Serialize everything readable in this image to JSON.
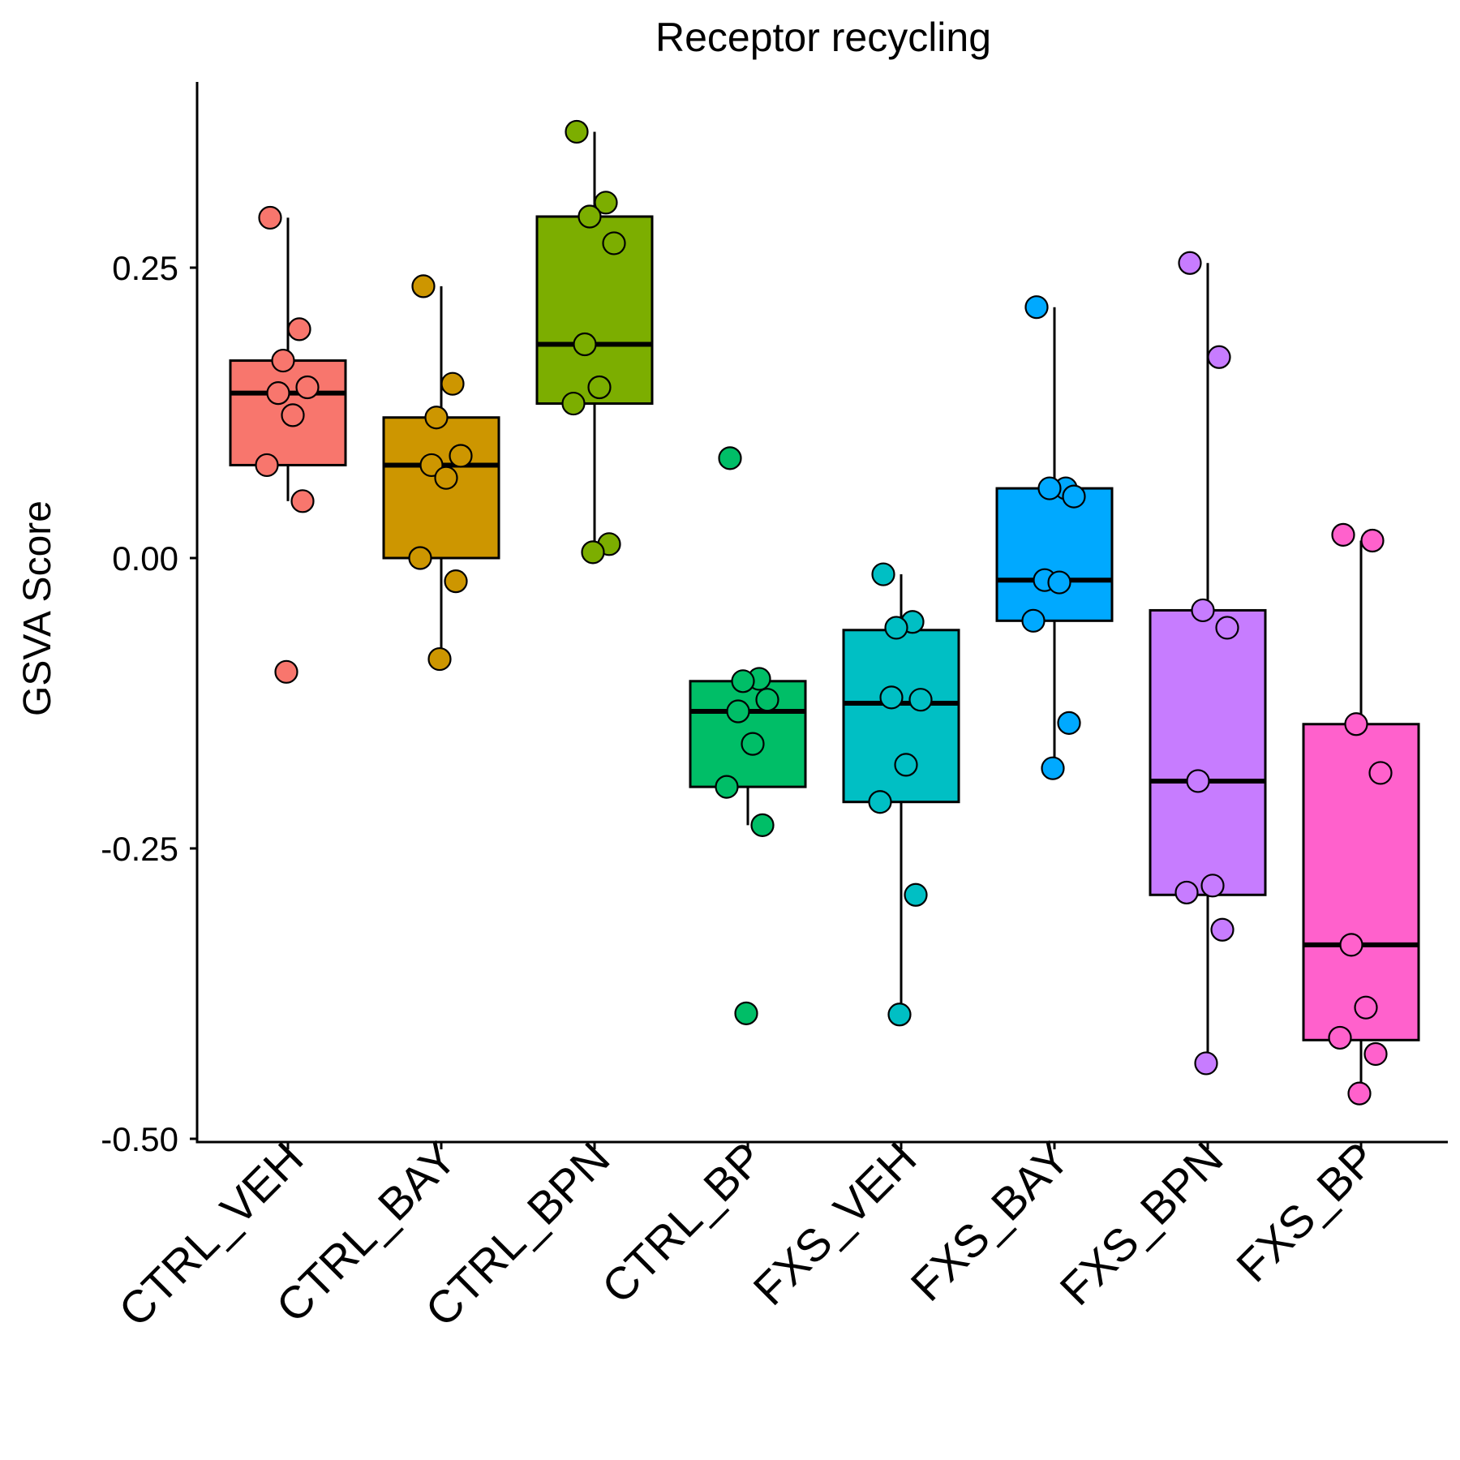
{
  "chart_data": {
    "type": "box",
    "title": "Receptor recycling",
    "xlabel": "",
    "ylabel": "GSVA Score",
    "ylim": [
      -0.5,
      0.41
    ],
    "yticks": [
      -0.5,
      -0.25,
      0.0,
      0.25
    ],
    "ytick_labels": [
      "-0.50",
      "-0.25",
      "0.00",
      "0.25"
    ],
    "grid": false,
    "legend": "none",
    "categories": [
      "CTRL_VEH",
      "CTRL_BAY",
      "CTRL_BPN",
      "CTRL_BP",
      "FXS_VEH",
      "FXS_BAY",
      "FXS_BPN",
      "FXS_BP"
    ],
    "colors": [
      "#F8766D",
      "#CD9600",
      "#7CAE00",
      "#00BE67",
      "#00BFC4",
      "#00A9FF",
      "#C77CFF",
      "#FF61CC"
    ],
    "boxes": [
      {
        "q1": 0.08,
        "median": 0.142,
        "q3": 0.17,
        "whisker_low": 0.049,
        "whisker_high": 0.293
      },
      {
        "q1": 0.0,
        "median": 0.08,
        "q3": 0.121,
        "whisker_low": -0.087,
        "whisker_high": 0.234
      },
      {
        "q1": 0.133,
        "median": 0.184,
        "q3": 0.294,
        "whisker_low": 0.005,
        "whisker_high": 0.367
      },
      {
        "q1": -0.197,
        "median": -0.132,
        "q3": -0.106,
        "whisker_low": -0.23,
        "whisker_high": -0.106
      },
      {
        "q1": -0.21,
        "median": -0.125,
        "q3": -0.062,
        "whisker_low": -0.393,
        "whisker_high": -0.014
      },
      {
        "q1": -0.054,
        "median": -0.019,
        "q3": 0.06,
        "whisker_low": -0.181,
        "whisker_high": 0.216
      },
      {
        "q1": -0.29,
        "median": -0.192,
        "q3": -0.045,
        "whisker_low": -0.435,
        "whisker_high": 0.254
      },
      {
        "q1": -0.415,
        "median": -0.333,
        "q3": -0.143,
        "whisker_low": -0.461,
        "whisker_high": 0.015
      }
    ],
    "points": [
      [
        0.293,
        0.197,
        0.17,
        0.147,
        0.142,
        0.123,
        0.08,
        0.049,
        -0.098
      ],
      [
        0.234,
        0.15,
        0.121,
        0.088,
        0.08,
        0.069,
        0.0,
        -0.02,
        -0.087
      ],
      [
        0.367,
        0.306,
        0.294,
        0.271,
        0.184,
        0.147,
        0.133,
        0.012,
        0.005
      ],
      [
        0.086,
        -0.104,
        -0.106,
        -0.122,
        -0.132,
        -0.16,
        -0.197,
        -0.23,
        -0.392
      ],
      [
        -0.014,
        -0.055,
        -0.06,
        -0.122,
        -0.12,
        -0.178,
        -0.21,
        -0.29,
        -0.393
      ],
      [
        0.216,
        0.06,
        0.06,
        0.053,
        -0.019,
        -0.021,
        -0.054,
        -0.142,
        -0.181
      ],
      [
        0.254,
        0.173,
        -0.045,
        -0.06,
        -0.192,
        -0.282,
        -0.288,
        -0.32,
        -0.435
      ],
      [
        0.02,
        0.015,
        -0.143,
        -0.185,
        -0.333,
        -0.387,
        -0.413,
        -0.427,
        -0.461
      ]
    ]
  }
}
